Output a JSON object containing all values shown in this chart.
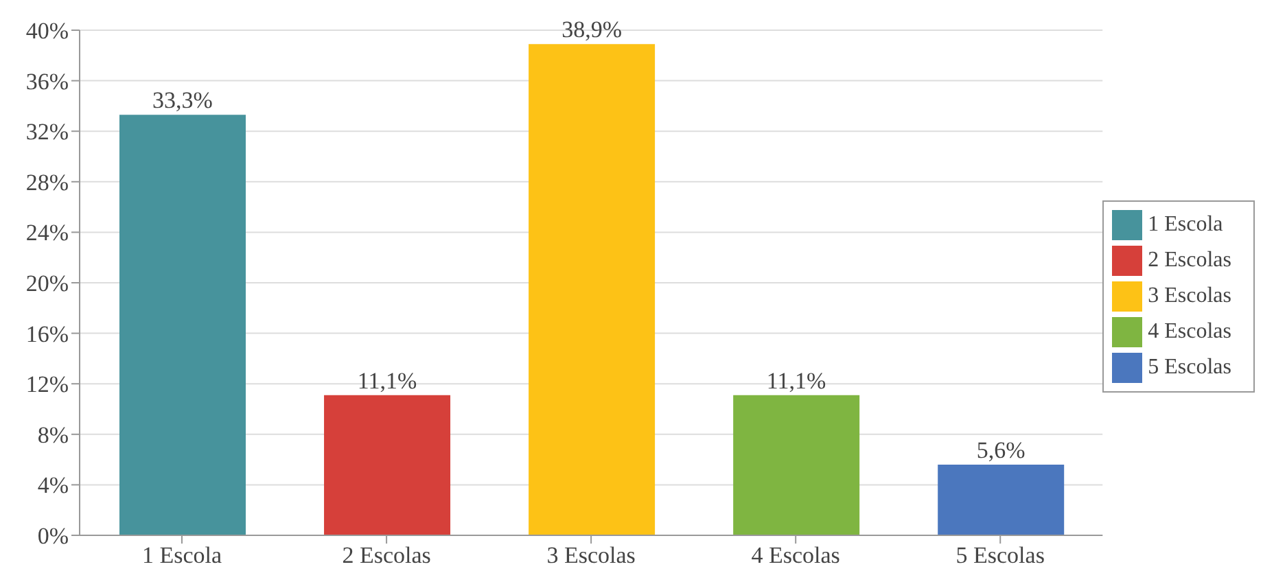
{
  "chart_data": {
    "type": "bar",
    "categories": [
      "1 Escola",
      "2 Escolas",
      "3 Escolas",
      "4 Escolas",
      "5 Escolas"
    ],
    "series": [
      {
        "name": "1 Escola",
        "color": "#47939c",
        "values": [
          33.3,
          null,
          null,
          null,
          null
        ],
        "value_labels": [
          "33,3%",
          null,
          null,
          null,
          null
        ]
      },
      {
        "name": "2 Escolas",
        "color": "#d6403a",
        "values": [
          null,
          11.1,
          null,
          null,
          null
        ],
        "value_labels": [
          null,
          "11,1%",
          null,
          null,
          null
        ]
      },
      {
        "name": "3 Escolas",
        "color": "#fdc216",
        "values": [
          null,
          null,
          38.9,
          null,
          null
        ],
        "value_labels": [
          null,
          null,
          "38,9%",
          null,
          null
        ]
      },
      {
        "name": "4 Escolas",
        "color": "#7fb541",
        "values": [
          null,
          null,
          null,
          11.1,
          null
        ],
        "value_labels": [
          null,
          null,
          null,
          "11,1%",
          null
        ]
      },
      {
        "name": "5 Escolas",
        "color": "#4b77be",
        "values": [
          null,
          null,
          null,
          null,
          5.6
        ],
        "value_labels": [
          null,
          null,
          null,
          null,
          "5,6%"
        ]
      }
    ],
    "ylim": [
      0,
      40
    ],
    "yticks": [
      {
        "value": 0,
        "label": "0%"
      },
      {
        "value": 4,
        "label": "4%"
      },
      {
        "value": 8,
        "label": "8%"
      },
      {
        "value": 12,
        "label": "12%"
      },
      {
        "value": 16,
        "label": "16%"
      },
      {
        "value": 20,
        "label": "20%"
      },
      {
        "value": 24,
        "label": "24%"
      },
      {
        "value": 28,
        "label": "28%"
      },
      {
        "value": 32,
        "label": "32%"
      },
      {
        "value": 36,
        "label": "36%"
      },
      {
        "value": 40,
        "label": "40%"
      }
    ],
    "grid": "y",
    "legend": "right"
  }
}
